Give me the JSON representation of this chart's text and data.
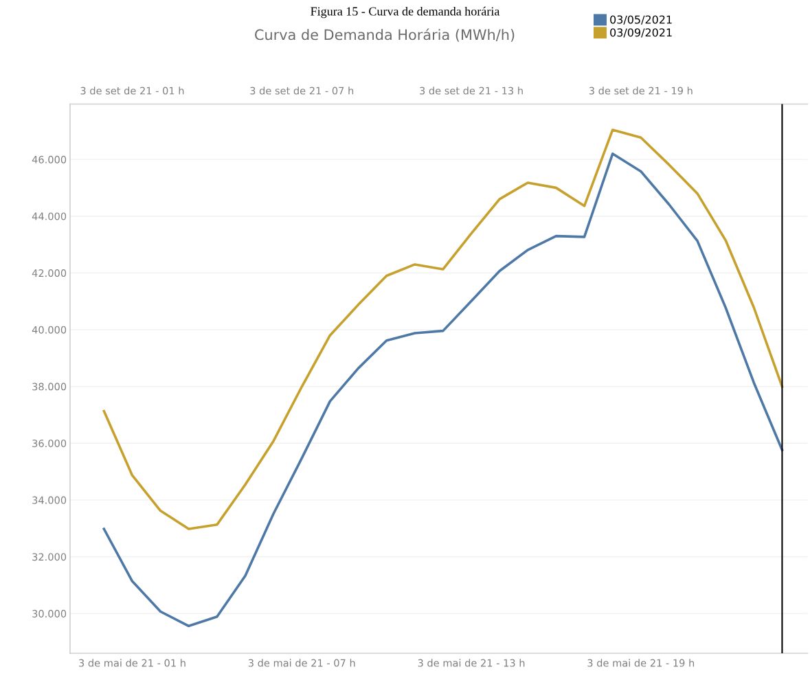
{
  "chart_data": {
    "type": "line",
    "title": "Curva de Demanda Horária (MWh/h)",
    "annotations": [
      "Figura 15 - Curva de demanda horária",
      "3 de set de 21 - 01 h",
      "3 de set de 21 - 07 h",
      "3 de set de 21 - 13 h",
      "3 de set de 21 - 19 h"
    ],
    "categories": [
      null,
      "3 de mai de 21 - 01 h",
      null,
      null,
      null,
      null,
      null,
      "3 de mai de 21 - 07 h",
      null,
      null,
      null,
      null,
      null,
      "3 de mai de 21 - 13 h",
      null,
      null,
      null,
      null,
      null,
      "3 de mai de 21 - 19 h",
      null,
      null,
      null,
      null,
      null
    ],
    "series": [
      {
        "name": "03/05/2021",
        "color": "#4e79a7",
        "values": [
          32980,
          31140,
          30070,
          29560,
          29890,
          31330,
          33520,
          35470,
          37480,
          38640,
          39620,
          39880,
          39960,
          41010,
          42070,
          42810,
          43300,
          43270,
          46200,
          45580,
          44410,
          43130,
          40780,
          38130,
          35760
        ]
      },
      {
        "name": "03/09/2021",
        "color": "#c6a12e",
        "values": [
          37130,
          34870,
          33620,
          32980,
          33130,
          34540,
          36080,
          37990,
          39800,
          40880,
          41900,
          42300,
          42130,
          43390,
          44600,
          45180,
          45000,
          44360,
          47040,
          46770,
          45810,
          44800,
          43150,
          40780,
          37990
        ]
      }
    ],
    "ylim": [
      28600,
      47950
    ],
    "yticks": [
      {
        "value": 30000,
        "label": "30.000"
      },
      {
        "value": 32000,
        "label": "32.000"
      },
      {
        "value": 34000,
        "label": "34.000"
      },
      {
        "value": 36000,
        "label": "36.000"
      },
      {
        "value": 38000,
        "label": "38.000"
      },
      {
        "value": 40000,
        "label": "40.000"
      },
      {
        "value": 42000,
        "label": "42.000"
      },
      {
        "value": 44000,
        "label": "44.000"
      },
      {
        "value": 46000,
        "label": "46.000"
      }
    ],
    "grid": "y",
    "legend": "top right",
    "marker": "none",
    "line_style": "solid"
  }
}
